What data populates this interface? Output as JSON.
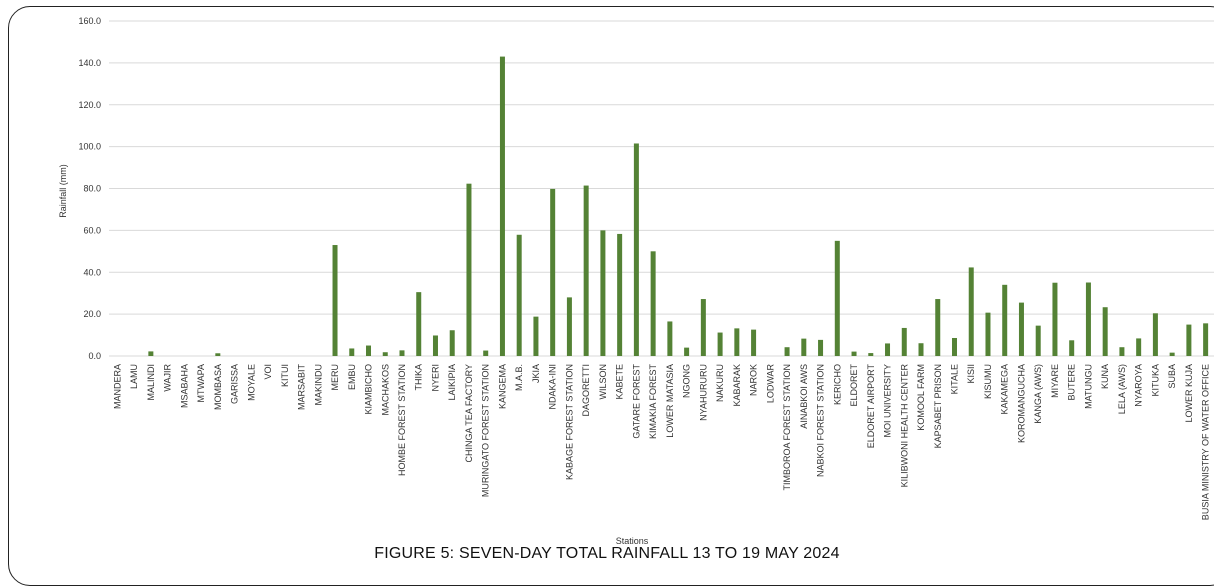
{
  "caption": "FIGURE 5: SEVEN-DAY TOTAL RAINFALL 13 TO 19 MAY 2024",
  "chart_data": {
    "type": "bar",
    "xlabel": "Stations",
    "ylabel": "Rainfall (mm)",
    "ylim": [
      0,
      160
    ],
    "yticks": [
      "0.0",
      "20.0",
      "40.0",
      "60.0",
      "80.0",
      "100.0",
      "120.0",
      "140.0",
      "160.0"
    ],
    "grid": "horizontal",
    "bar_color": "#548235",
    "categories": [
      "MANDERA",
      "LAMU",
      "MALINDI",
      "WAJIR",
      "MSABAHA",
      "MTWAPA",
      "MOMBASA",
      "GARISSA",
      "MOYALE",
      "VOI",
      "KITUI",
      "MARSABIT",
      "MAKINDU",
      "MERU",
      "EMBU",
      "KIAMBICHO",
      "MACHAKOS",
      "HOMBE FOREST STATION",
      "THIKA",
      "NYERI",
      "LAIKIPIA",
      "CHINGA TEA FACTORY",
      "MURINGATO FOREST STATION",
      "KANGEMA",
      "M.A.B.",
      "JKIA",
      "NDAKA-INI",
      "KABAGE FOREST STATION",
      "DAGORETTI",
      "WILSON",
      "KABETE",
      "GATARE FOREST",
      "KIMAKIA FOREST",
      "LOWER MATASIA",
      "NGONG",
      "NYAHURURU",
      "NAKURU",
      "KABARAK",
      "NAROK",
      "LODWAR",
      "TIMBOROA FOREST STATION",
      "AINABKOI AWS",
      "NABKOI FOREST STATION",
      "KERICHO",
      "ELDORET",
      "ELDORET AIRPORT",
      "MOI UNIVERSITY",
      "KILIBWONI HEALTH CENTER",
      "KOMOOL FARM",
      "KAPSABET  PRISON",
      "KITALE",
      "KISII",
      "KISUMU",
      "KAKAMEGA",
      "KOROMANGUCHA",
      "KANGA (AWS)",
      "MIYARE",
      "BUTERE",
      "MATUNGU",
      "KUNA",
      "LELA (AWS)",
      "NYAROYA",
      "KITUKA",
      "SUBA",
      "LOWER KUJA",
      "BUSIA MINISTRY OF WATER OFFICE"
    ],
    "values": [
      0,
      0,
      2.2,
      0,
      0,
      0,
      1.3,
      0,
      0,
      0,
      0,
      0,
      0,
      53.0,
      3.6,
      5.0,
      1.8,
      2.7,
      30.5,
      9.8,
      12.3,
      82.3,
      2.6,
      143.0,
      57.9,
      18.8,
      79.8,
      28.0,
      81.4,
      60.0,
      58.3,
      101.5,
      50.0,
      16.5,
      4.0,
      27.2,
      11.2,
      13.2,
      12.6,
      0,
      4.2,
      8.3,
      7.7,
      55.0,
      2.1,
      1.4,
      6.0,
      13.4,
      6.1,
      27.2,
      8.6,
      42.3,
      20.7,
      34.0,
      25.5,
      14.5,
      35.0,
      7.5,
      35.1,
      23.3,
      4.2,
      8.4,
      20.4,
      1.6,
      15.0,
      15.6
    ]
  }
}
